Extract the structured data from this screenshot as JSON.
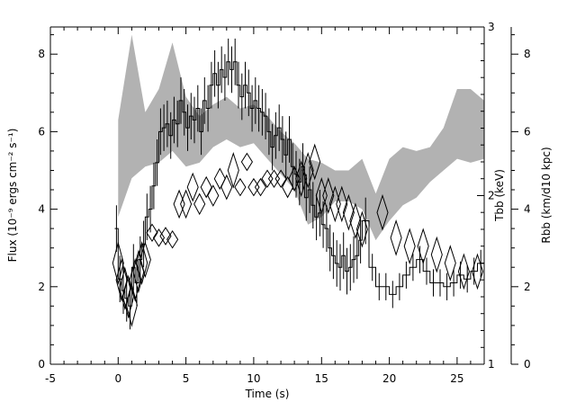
{
  "chart_data": {
    "type": "line",
    "title": "",
    "xlabel": "Time (s)",
    "xlim": [
      -5,
      27
    ],
    "x_ticks": [
      -5,
      0,
      5,
      10,
      15,
      20,
      25
    ],
    "ylabel_left": "Flux (10⁻⁹ ergs cm⁻² s⁻¹)",
    "ylim_left": [
      0,
      8.7
    ],
    "y_ticks_left": [
      0,
      2,
      4,
      6,
      8
    ],
    "ylabel_right_temp": "Tbb (keV)",
    "ylim_right_temp": [
      1,
      3
    ],
    "y_ticks_right_temp": [
      1,
      2,
      3
    ],
    "ylabel_right_radius": "Rbb (km/d10 kpc)",
    "ylim_right_radius": [
      0,
      8.7
    ],
    "y_ticks_right_radius": [
      0,
      2,
      4,
      6,
      8
    ],
    "grid": false,
    "series": [
      {
        "kind": "flux-histogram",
        "x_edges": [
          -0.25,
          0,
          0.25,
          0.5,
          0.75,
          1,
          1.25,
          1.5,
          1.75,
          2,
          2.25,
          2.5,
          2.75,
          3,
          3.25,
          3.5,
          3.75,
          4,
          4.25,
          4.5,
          4.75,
          5,
          5.25,
          5.5,
          5.75,
          6,
          6.25,
          6.5,
          6.75,
          7,
          7.25,
          7.5,
          7.75,
          8,
          8.25,
          8.5,
          8.75,
          9,
          9.25,
          9.5,
          9.75,
          10,
          10.25,
          10.5,
          10.75,
          11,
          11.25,
          11.5,
          11.75,
          12,
          12.25,
          12.5,
          12.75,
          13,
          13.25,
          13.5,
          13.75,
          14,
          14.25,
          14.5,
          14.75,
          15,
          15.25,
          15.5,
          15.75,
          16,
          16.25,
          16.5,
          16.75,
          17,
          17.25,
          17.5,
          17.75,
          18,
          18.5,
          19,
          19.5,
          20,
          20.5,
          21,
          21.5,
          22,
          22.5,
          23,
          23.5,
          24,
          24.5,
          25,
          25.5,
          26,
          26.5,
          27
        ],
        "values": [
          3.5,
          2.2,
          1.9,
          1.7,
          1.5,
          2.5,
          2.1,
          2.7,
          3.1,
          3.8,
          4.0,
          4.6,
          5.2,
          6.0,
          6.1,
          6.2,
          5.9,
          6.3,
          6.2,
          6.8,
          6.5,
          6.1,
          6.4,
          6.3,
          6.6,
          6.0,
          6.8,
          6.6,
          7.2,
          7.5,
          7.2,
          7.6,
          7.4,
          7.8,
          7.6,
          7.8,
          7.2,
          6.9,
          7.2,
          7.0,
          6.6,
          6.8,
          6.6,
          6.5,
          6.4,
          6.0,
          5.6,
          5.9,
          6.1,
          5.8,
          5.4,
          5.8,
          5.1,
          4.9,
          4.7,
          5.1,
          4.3,
          4.5,
          4.1,
          3.8,
          3.9,
          3.6,
          3.5,
          3.0,
          2.8,
          2.6,
          2.5,
          2.8,
          2.4,
          2.5,
          2.7,
          2.8,
          3.2,
          3.7,
          2.5,
          2.0,
          2.0,
          1.8,
          2.0,
          2.3,
          2.5,
          2.7,
          2.4,
          2.1,
          2.1,
          2.0,
          2.1,
          2.3,
          2.2,
          2.4,
          2.6
        ],
        "errors": [
          0.6,
          0.6,
          0.6,
          0.6,
          0.6,
          0.6,
          0.6,
          0.6,
          0.6,
          0.6,
          0.6,
          0.6,
          0.6,
          0.6,
          0.6,
          0.6,
          0.6,
          0.6,
          0.6,
          0.6,
          0.6,
          0.6,
          0.6,
          0.6,
          0.6,
          0.6,
          0.6,
          0.6,
          0.6,
          0.6,
          0.6,
          0.6,
          0.6,
          0.6,
          0.6,
          0.6,
          0.6,
          0.6,
          0.6,
          0.6,
          0.6,
          0.6,
          0.6,
          0.6,
          0.6,
          0.6,
          0.6,
          0.6,
          0.6,
          0.6,
          0.6,
          0.6,
          0.6,
          0.6,
          0.6,
          0.6,
          0.6,
          0.6,
          0.6,
          0.6,
          0.6,
          0.6,
          0.6,
          0.6,
          0.6,
          0.6,
          0.6,
          0.6,
          0.6,
          0.6,
          0.6,
          0.6,
          0.6,
          0.6,
          0.35,
          0.35,
          0.35,
          0.35,
          0.35,
          0.35,
          0.35,
          0.35,
          0.35,
          0.35,
          0.35,
          0.35,
          0.35,
          0.35,
          0.35,
          0.35,
          0.35
        ]
      },
      {
        "kind": "temperature-diamonds",
        "x": [
          0,
          0.25,
          0.5,
          0.75,
          1,
          1.25,
          1.5,
          1.75,
          2,
          2.5,
          3,
          3.5,
          4,
          4.5,
          5,
          5.5,
          6,
          6.5,
          7,
          7.5,
          8,
          8.5,
          9,
          9.5,
          10,
          10.5,
          11,
          11.5,
          12,
          12.5,
          13,
          13.5,
          14,
          14.5,
          15,
          15.5,
          16,
          16.5,
          17,
          17.5,
          18,
          19.5,
          20.5,
          21.5,
          22.5,
          23.5,
          24.5,
          25.5,
          26.5
        ],
        "y": [
          1.6,
          1.5,
          1.45,
          1.4,
          1.35,
          1.5,
          1.55,
          1.6,
          1.62,
          1.78,
          1.75,
          1.76,
          1.74,
          1.95,
          1.95,
          2.05,
          1.95,
          2.05,
          2.0,
          2.1,
          2.05,
          2.15,
          2.05,
          2.2,
          2.05,
          2.05,
          2.1,
          2.1,
          2.1,
          2.05,
          2.1,
          2.1,
          2.15,
          2.2,
          2.0,
          2.0,
          1.95,
          1.95,
          1.9,
          1.85,
          1.8,
          1.9,
          1.75,
          1.7,
          1.7,
          1.65,
          1.6,
          1.55,
          1.55
        ],
        "err": [
          0.12,
          0.12,
          0.12,
          0.12,
          0.12,
          0.12,
          0.12,
          0.12,
          0.1,
          0.05,
          0.05,
          0.05,
          0.05,
          0.08,
          0.08,
          0.08,
          0.06,
          0.06,
          0.06,
          0.06,
          0.07,
          0.1,
          0.05,
          0.05,
          0.05,
          0.05,
          0.05,
          0.05,
          0.05,
          0.06,
          0.07,
          0.1,
          0.1,
          0.1,
          0.1,
          0.1,
          0.1,
          0.1,
          0.1,
          0.1,
          0.1,
          0.1,
          0.1,
          0.1,
          0.1,
          0.1,
          0.1,
          0.1,
          0.1
        ]
      },
      {
        "kind": "radius-band",
        "x": [
          0,
          1,
          2,
          3,
          4,
          5,
          6,
          7,
          8,
          9,
          10,
          11,
          12,
          13,
          14,
          15,
          16,
          17,
          18,
          19,
          20,
          21,
          22,
          23,
          24,
          25,
          26,
          27
        ],
        "upper": [
          6.3,
          8.5,
          6.5,
          7.1,
          8.3,
          6.9,
          6.4,
          6.7,
          6.9,
          6.6,
          6.7,
          6.4,
          6.0,
          5.7,
          5.3,
          5.2,
          5.0,
          5.0,
          5.3,
          4.4,
          5.3,
          5.6,
          5.5,
          5.6,
          6.1,
          7.1,
          7.1,
          6.8
        ],
        "lower": [
          3.8,
          4.8,
          5.1,
          5.2,
          5.5,
          5.1,
          5.2,
          5.6,
          5.8,
          5.6,
          5.7,
          5.3,
          4.9,
          4.5,
          3.6,
          3.8,
          4.2,
          4.2,
          4.0,
          3.2,
          3.7,
          4.1,
          4.3,
          4.7,
          5.0,
          5.3,
          5.2,
          5.3
        ]
      }
    ]
  }
}
